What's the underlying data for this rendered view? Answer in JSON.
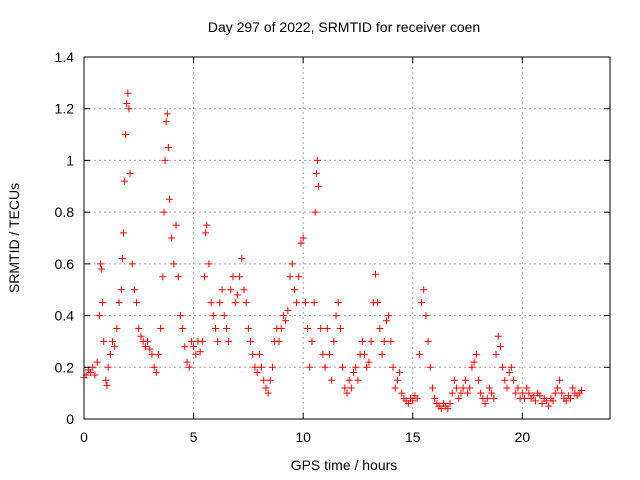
{
  "chart_data": {
    "type": "scatter",
    "title": "Day 297 of 2022, SRMTID for receiver coen",
    "xlabel": "GPS time / hours",
    "ylabel": "SRMTID / TECUs",
    "xlim": [
      0,
      24
    ],
    "ylim": [
      0,
      1.4
    ],
    "xticks": [
      0,
      5,
      10,
      15,
      20
    ],
    "xtick_labels": [
      "0",
      "5",
      "10",
      "15",
      "20"
    ],
    "yticks": [
      0,
      0.2,
      0.4,
      0.6,
      0.8,
      1,
      1.2,
      1.4
    ],
    "ytick_labels": [
      "0",
      "0.2",
      "0.4",
      "0.6",
      "0.8",
      "1",
      "1.2",
      "1.4"
    ],
    "grid": true,
    "marker": "+",
    "color": "#ff0000",
    "series": [
      {
        "name": "SRMTID",
        "points": [
          [
            0.0,
            0.16
          ],
          [
            0.1,
            0.17
          ],
          [
            0.2,
            0.19
          ],
          [
            0.3,
            0.18
          ],
          [
            0.4,
            0.2
          ],
          [
            0.5,
            0.17
          ],
          [
            0.6,
            0.22
          ],
          [
            0.7,
            0.4
          ],
          [
            0.75,
            0.6
          ],
          [
            0.8,
            0.58
          ],
          [
            0.85,
            0.45
          ],
          [
            0.9,
            0.3
          ],
          [
            1.0,
            0.15
          ],
          [
            1.05,
            0.13
          ],
          [
            1.1,
            0.2
          ],
          [
            1.2,
            0.25
          ],
          [
            1.3,
            0.3
          ],
          [
            1.4,
            0.28
          ],
          [
            1.5,
            0.35
          ],
          [
            1.6,
            0.45
          ],
          [
            1.7,
            0.5
          ],
          [
            1.75,
            0.62
          ],
          [
            1.8,
            0.72
          ],
          [
            1.85,
            0.92
          ],
          [
            1.9,
            1.1
          ],
          [
            1.95,
            1.22
          ],
          [
            2.0,
            1.26
          ],
          [
            2.05,
            1.2
          ],
          [
            2.1,
            0.95
          ],
          [
            2.2,
            0.6
          ],
          [
            2.3,
            0.5
          ],
          [
            2.4,
            0.45
          ],
          [
            2.5,
            0.35
          ],
          [
            2.6,
            0.32
          ],
          [
            2.7,
            0.3
          ],
          [
            2.8,
            0.28
          ],
          [
            2.9,
            0.3
          ],
          [
            3.0,
            0.27
          ],
          [
            3.1,
            0.25
          ],
          [
            3.2,
            0.2
          ],
          [
            3.3,
            0.18
          ],
          [
            3.4,
            0.25
          ],
          [
            3.5,
            0.35
          ],
          [
            3.6,
            0.55
          ],
          [
            3.65,
            0.8
          ],
          [
            3.7,
            1.0
          ],
          [
            3.75,
            1.15
          ],
          [
            3.8,
            1.18
          ],
          [
            3.85,
            1.05
          ],
          [
            3.9,
            0.85
          ],
          [
            4.0,
            0.7
          ],
          [
            4.1,
            0.6
          ],
          [
            4.2,
            0.75
          ],
          [
            4.3,
            0.55
          ],
          [
            4.4,
            0.4
          ],
          [
            4.5,
            0.35
          ],
          [
            4.6,
            0.28
          ],
          [
            4.7,
            0.22
          ],
          [
            4.8,
            0.2
          ],
          [
            4.9,
            0.3
          ],
          [
            5.0,
            0.28
          ],
          [
            5.1,
            0.25
          ],
          [
            5.2,
            0.3
          ],
          [
            5.3,
            0.26
          ],
          [
            5.4,
            0.3
          ],
          [
            5.5,
            0.55
          ],
          [
            5.55,
            0.72
          ],
          [
            5.6,
            0.75
          ],
          [
            5.7,
            0.6
          ],
          [
            5.8,
            0.45
          ],
          [
            5.9,
            0.4
          ],
          [
            6.0,
            0.35
          ],
          [
            6.1,
            0.3
          ],
          [
            6.2,
            0.45
          ],
          [
            6.3,
            0.5
          ],
          [
            6.4,
            0.4
          ],
          [
            6.5,
            0.35
          ],
          [
            6.6,
            0.3
          ],
          [
            6.7,
            0.5
          ],
          [
            6.8,
            0.55
          ],
          [
            6.9,
            0.45
          ],
          [
            7.0,
            0.48
          ],
          [
            7.1,
            0.55
          ],
          [
            7.2,
            0.62
          ],
          [
            7.3,
            0.5
          ],
          [
            7.4,
            0.45
          ],
          [
            7.5,
            0.35
          ],
          [
            7.6,
            0.3
          ],
          [
            7.7,
            0.25
          ],
          [
            7.8,
            0.2
          ],
          [
            7.9,
            0.18
          ],
          [
            8.0,
            0.25
          ],
          [
            8.1,
            0.2
          ],
          [
            8.2,
            0.15
          ],
          [
            8.3,
            0.12
          ],
          [
            8.4,
            0.1
          ],
          [
            8.5,
            0.15
          ],
          [
            8.6,
            0.2
          ],
          [
            8.7,
            0.3
          ],
          [
            8.8,
            0.35
          ],
          [
            8.9,
            0.3
          ],
          [
            9.0,
            0.35
          ],
          [
            9.1,
            0.4
          ],
          [
            9.2,
            0.38
          ],
          [
            9.3,
            0.42
          ],
          [
            9.4,
            0.55
          ],
          [
            9.5,
            0.6
          ],
          [
            9.6,
            0.5
          ],
          [
            9.7,
            0.45
          ],
          [
            9.8,
            0.55
          ],
          [
            9.9,
            0.68
          ],
          [
            10.0,
            0.7
          ],
          [
            10.1,
            0.45
          ],
          [
            10.2,
            0.35
          ],
          [
            10.3,
            0.2
          ],
          [
            10.4,
            0.3
          ],
          [
            10.5,
            0.45
          ],
          [
            10.55,
            0.8
          ],
          [
            10.6,
            0.95
          ],
          [
            10.65,
            1.0
          ],
          [
            10.7,
            0.9
          ],
          [
            10.8,
            0.35
          ],
          [
            10.9,
            0.25
          ],
          [
            11.0,
            0.2
          ],
          [
            11.1,
            0.35
          ],
          [
            11.2,
            0.25
          ],
          [
            11.3,
            0.15
          ],
          [
            11.4,
            0.3
          ],
          [
            11.5,
            0.4
          ],
          [
            11.6,
            0.45
          ],
          [
            11.7,
            0.35
          ],
          [
            11.8,
            0.2
          ],
          [
            11.9,
            0.12
          ],
          [
            12.0,
            0.1
          ],
          [
            12.1,
            0.15
          ],
          [
            12.2,
            0.12
          ],
          [
            12.3,
            0.18
          ],
          [
            12.4,
            0.2
          ],
          [
            12.5,
            0.15
          ],
          [
            12.6,
            0.25
          ],
          [
            12.7,
            0.3
          ],
          [
            12.8,
            0.25
          ],
          [
            12.9,
            0.2
          ],
          [
            13.0,
            0.22
          ],
          [
            13.1,
            0.3
          ],
          [
            13.2,
            0.45
          ],
          [
            13.3,
            0.56
          ],
          [
            13.4,
            0.45
          ],
          [
            13.5,
            0.35
          ],
          [
            13.6,
            0.25
          ],
          [
            13.7,
            0.3
          ],
          [
            13.8,
            0.38
          ],
          [
            13.9,
            0.4
          ],
          [
            14.0,
            0.3
          ],
          [
            14.1,
            0.2
          ],
          [
            14.2,
            0.12
          ],
          [
            14.3,
            0.15
          ],
          [
            14.4,
            0.18
          ],
          [
            14.5,
            0.1
          ],
          [
            14.6,
            0.08
          ],
          [
            14.7,
            0.07
          ],
          [
            14.8,
            0.06
          ],
          [
            14.9,
            0.08
          ],
          [
            15.0,
            0.07
          ],
          [
            15.1,
            0.09
          ],
          [
            15.2,
            0.08
          ],
          [
            15.3,
            0.25
          ],
          [
            15.4,
            0.45
          ],
          [
            15.5,
            0.5
          ],
          [
            15.6,
            0.4
          ],
          [
            15.7,
            0.3
          ],
          [
            15.8,
            0.2
          ],
          [
            15.9,
            0.12
          ],
          [
            16.0,
            0.08
          ],
          [
            16.1,
            0.06
          ],
          [
            16.2,
            0.05
          ],
          [
            16.3,
            0.04
          ],
          [
            16.4,
            0.06
          ],
          [
            16.5,
            0.05
          ],
          [
            16.6,
            0.04
          ],
          [
            16.7,
            0.06
          ],
          [
            16.8,
            0.1
          ],
          [
            16.9,
            0.15
          ],
          [
            17.0,
            0.12
          ],
          [
            17.1,
            0.08
          ],
          [
            17.2,
            0.1
          ],
          [
            17.3,
            0.12
          ],
          [
            17.4,
            0.15
          ],
          [
            17.5,
            0.1
          ],
          [
            17.6,
            0.12
          ],
          [
            17.7,
            0.2
          ],
          [
            17.8,
            0.22
          ],
          [
            17.9,
            0.25
          ],
          [
            18.0,
            0.15
          ],
          [
            18.1,
            0.1
          ],
          [
            18.2,
            0.08
          ],
          [
            18.3,
            0.06
          ],
          [
            18.4,
            0.08
          ],
          [
            18.5,
            0.12
          ],
          [
            18.6,
            0.1
          ],
          [
            18.7,
            0.08
          ],
          [
            18.8,
            0.25
          ],
          [
            18.9,
            0.32
          ],
          [
            19.0,
            0.28
          ],
          [
            19.1,
            0.2
          ],
          [
            19.2,
            0.15
          ],
          [
            19.3,
            0.12
          ],
          [
            19.4,
            0.18
          ],
          [
            19.5,
            0.2
          ],
          [
            19.6,
            0.15
          ],
          [
            19.7,
            0.1
          ],
          [
            19.8,
            0.12
          ],
          [
            19.9,
            0.08
          ],
          [
            20.0,
            0.1
          ],
          [
            20.1,
            0.08
          ],
          [
            20.2,
            0.12
          ],
          [
            20.3,
            0.1
          ],
          [
            20.4,
            0.08
          ],
          [
            20.5,
            0.09
          ],
          [
            20.6,
            0.07
          ],
          [
            20.7,
            0.1
          ],
          [
            20.8,
            0.09
          ],
          [
            20.9,
            0.06
          ],
          [
            21.0,
            0.08
          ],
          [
            21.1,
            0.07
          ],
          [
            21.2,
            0.05
          ],
          [
            21.3,
            0.08
          ],
          [
            21.4,
            0.07
          ],
          [
            21.5,
            0.1
          ],
          [
            21.6,
            0.12
          ],
          [
            21.7,
            0.15
          ],
          [
            21.8,
            0.1
          ],
          [
            21.9,
            0.08
          ],
          [
            22.0,
            0.07
          ],
          [
            22.1,
            0.09
          ],
          [
            22.2,
            0.08
          ],
          [
            22.3,
            0.12
          ],
          [
            22.4,
            0.1
          ],
          [
            22.5,
            0.09
          ],
          [
            22.6,
            0.1
          ],
          [
            22.7,
            0.11
          ]
        ]
      }
    ]
  }
}
